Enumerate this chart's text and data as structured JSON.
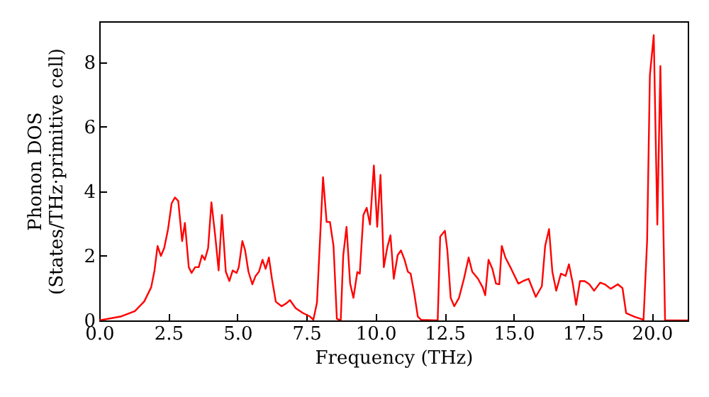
{
  "chart_data": {
    "type": "line",
    "xlabel": "Frequency (THz)",
    "ylabel": "Phonon DOS\n(States/THz·primitive cell)",
    "xlim": [
      0,
      21.3
    ],
    "ylim": [
      0,
      9.27
    ],
    "xticks": [
      {
        "value": 0,
        "label": "0.0"
      },
      {
        "value": 2.5,
        "label": "2.5"
      },
      {
        "value": 5,
        "label": "5.0"
      },
      {
        "value": 7.5,
        "label": "7.5"
      },
      {
        "value": 10,
        "label": "10.0"
      },
      {
        "value": 12.5,
        "label": "12.5"
      },
      {
        "value": 15,
        "label": "15.0"
      },
      {
        "value": 17.5,
        "label": "17.5"
      },
      {
        "value": 20,
        "label": "20.0"
      }
    ],
    "yticks": [
      0,
      2,
      4,
      6,
      8
    ],
    "grid": false,
    "marker": "none",
    "line_style": "solid",
    "series": [
      {
        "color": "#ff0000",
        "x": [
          0,
          0.77,
          1.29,
          1.63,
          1.88,
          2.0,
          2.11,
          2.23,
          2.35,
          2.49,
          2.62,
          2.74,
          2.86,
          3.0,
          3.1,
          3.24,
          3.34,
          3.47,
          3.6,
          3.72,
          3.82,
          3.94,
          4.06,
          4.2,
          4.32,
          4.44,
          4.58,
          4.71,
          4.83,
          4.97,
          5.05,
          5.18,
          5.28,
          5.4,
          5.54,
          5.66,
          5.78,
          5.91,
          6.02,
          6.14,
          6.25,
          6.39,
          6.6,
          6.77,
          6.9,
          7.11,
          7.37,
          7.63,
          7.75,
          7.88,
          8.1,
          8.23,
          8.35,
          8.48,
          8.6,
          8.74,
          8.83,
          8.95,
          9.08,
          9.2,
          9.34,
          9.43,
          9.56,
          9.68,
          9.8,
          9.94,
          10.06,
          10.18,
          10.3,
          10.42,
          10.54,
          10.66,
          10.8,
          10.92,
          11.05,
          11.17,
          11.27,
          11.4,
          11.53,
          11.65,
          12.25,
          12.34,
          12.51,
          12.6,
          12.72,
          12.85,
          13.02,
          13.2,
          13.37,
          13.5,
          13.71,
          13.88,
          13.97,
          14.09,
          14.23,
          14.36,
          14.48,
          14.57,
          14.7,
          14.91,
          15.17,
          15.34,
          15.54,
          15.8,
          16.02,
          16.14,
          16.28,
          16.4,
          16.54,
          16.71,
          16.88,
          17.0,
          17.14,
          17.26,
          17.4,
          17.57,
          17.74,
          17.91,
          18.13,
          18.3,
          18.51,
          18.77,
          18.94,
          19.07,
          19.36,
          19.7,
          19.83,
          19.93,
          20.07,
          20.2,
          20.31,
          20.48,
          21.3
        ],
        "values": [
          0,
          0.12,
          0.29,
          0.59,
          1.03,
          1.55,
          2.31,
          2.0,
          2.24,
          2.83,
          3.63,
          3.81,
          3.7,
          2.46,
          3.02,
          1.65,
          1.47,
          1.65,
          1.65,
          2.02,
          1.88,
          2.24,
          3.66,
          2.6,
          1.55,
          3.27,
          1.51,
          1.22,
          1.55,
          1.47,
          1.65,
          2.46,
          2.17,
          1.51,
          1.12,
          1.38,
          1.51,
          1.88,
          1.6,
          1.95,
          1.29,
          0.58,
          0.44,
          0.53,
          0.63,
          0.38,
          0.23,
          0.12,
          0.02,
          0.55,
          4.44,
          3.05,
          3.05,
          2.3,
          0.05,
          0,
          2.0,
          2.9,
          1.15,
          0.7,
          1.5,
          1.45,
          3.27,
          3.49,
          2.97,
          4.8,
          2.9,
          4.51,
          1.65,
          2.24,
          2.64,
          1.29,
          2.02,
          2.17,
          1.88,
          1.51,
          1.45,
          0.85,
          0.12,
          0.02,
          0,
          2.6,
          2.78,
          2.17,
          0.7,
          0.44,
          0.7,
          1.29,
          1.95,
          1.51,
          1.29,
          1.02,
          0.78,
          1.88,
          1.6,
          1.14,
          1.12,
          2.31,
          1.95,
          1.6,
          1.14,
          1.22,
          1.29,
          0.73,
          1.06,
          2.31,
          2.83,
          1.51,
          0.92,
          1.45,
          1.38,
          1.74,
          1.14,
          0.48,
          1.22,
          1.22,
          1.12,
          0.92,
          1.17,
          1.12,
          0.98,
          1.12,
          1.0,
          0.23,
          0.12,
          0.02,
          2.46,
          7.59,
          8.84,
          2.97,
          7.88,
          0,
          0
        ]
      }
    ]
  }
}
